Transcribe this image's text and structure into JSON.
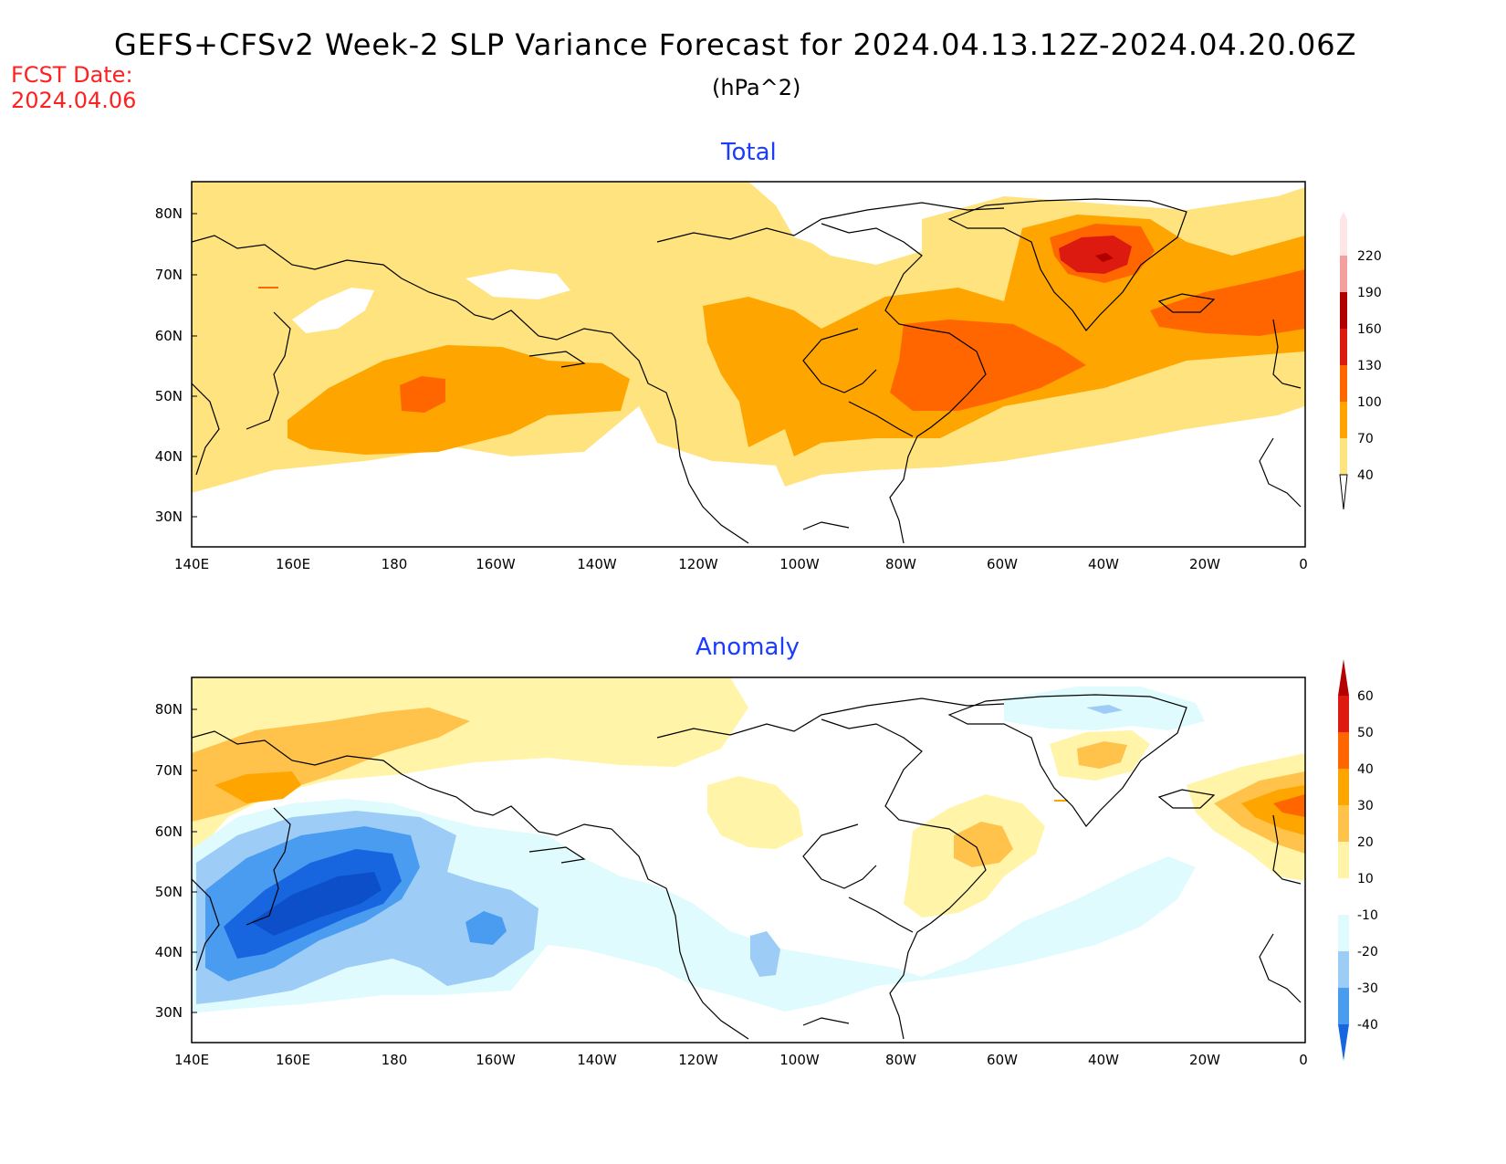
{
  "header": {
    "title": "GEFS+CFSv2 Week-2 SLP Variance Forecast for 2024.04.13.12Z-2024.04.20.06Z",
    "units": "(hPa^2)",
    "fcst_label": "FCST Date:",
    "fcst_date": "2024.04.06"
  },
  "axes": {
    "lon_labels": [
      "140E",
      "160E",
      "180",
      "160W",
      "140W",
      "120W",
      "100W",
      "80W",
      "60W",
      "40W",
      "20W",
      "0"
    ],
    "lat_labels": [
      "80N",
      "70N",
      "60N",
      "50N",
      "40N",
      "30N"
    ]
  },
  "panels": [
    {
      "title": "Total",
      "colorbar": {
        "levels": [
          "220",
          "190",
          "160",
          "130",
          "100",
          "70",
          "40"
        ],
        "colors": [
          "#f9c2c2",
          "#f4a0a0",
          "#b00000",
          "#dd1a10",
          "#ff6600",
          "#ffa500",
          "#ffe37f"
        ]
      }
    },
    {
      "title": "Anomaly",
      "colorbar": {
        "levels": [
          "60",
          "50",
          "40",
          "30",
          "20",
          "10",
          "-10",
          "-20",
          "-30",
          "-40"
        ],
        "colors": [
          "#b50000",
          "#dd1a10",
          "#ff6600",
          "#ffa500",
          "#ffc24a",
          "#fff4a8",
          "#ffffff",
          "#e0fbfd",
          "#9dcdf7",
          "#4a9cf0",
          "#1766e0",
          "#0c4fc8"
        ]
      }
    }
  ]
}
